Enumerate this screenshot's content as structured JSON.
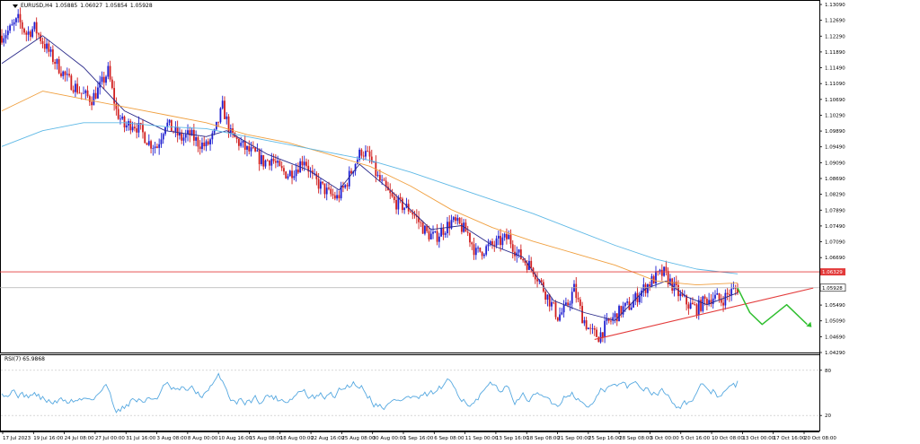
{
  "header": {
    "symbol": "EURUSD,H4",
    "open": "1.05885",
    "high": "1.06027",
    "low": "1.05854",
    "close": "1.05928"
  },
  "rsi_panel": {
    "label": "RSI(7) 65.9868"
  },
  "colors": {
    "bull_candle": "#1f1fd1",
    "bear_candle": "#d11f1f",
    "ma_fast": "#2a2a8a",
    "ma_mid": "#f0a040",
    "ma_slow": "#5fb9e6",
    "rsi_line": "#55a8e0",
    "resistance": "#e33b3b",
    "trendline": "#e33b3b",
    "projection": "#2fbf2f",
    "price_tag_bg": "#ffffff"
  },
  "chart_data": [
    {
      "type": "line",
      "name": "EURUSD H4 candlesticks",
      "ylim": [
        1.0429,
        1.1309
      ],
      "y_ticks": [
        "1.13090",
        "1.12690",
        "1.12290",
        "1.11890",
        "1.11490",
        "1.11090",
        "1.10690",
        "1.10290",
        "1.09890",
        "1.09490",
        "1.09090",
        "1.08690",
        "1.08290",
        "1.07890",
        "1.07490",
        "1.07090",
        "1.06690",
        "1.06329",
        "1.05928",
        "1.05490",
        "1.05090",
        "1.04690",
        "1.04290"
      ],
      "x_tick_labels": [
        "17 Jul 2023",
        "19 Jul 16:00",
        "24 Jul 08:00",
        "27 Jul 00:00",
        "31 Jul 16:00",
        "3 Aug 08:00",
        "8 Aug 00:00",
        "10 Aug 16:00",
        "15 Aug 08:00",
        "18 Aug 00:00",
        "22 Aug 16:00",
        "25 Aug 08:00",
        "30 Aug 00:00",
        "1 Sep 16:00",
        "6 Sep 08:00",
        "11 Sep 00:00",
        "13 Sep 16:00",
        "18 Sep 08:00",
        "21 Sep 00:00",
        "25 Sep 16:00",
        "28 Sep 08:00",
        "3 Oct 00:00",
        "5 Oct 16:00",
        "10 Oct 08:00",
        "13 Oct 00:00",
        "17 Oct 16:00",
        "20 Oct 08:00"
      ],
      "close_path": [
        [
          0,
          1.123
        ],
        [
          4,
          1.1245
        ],
        [
          8,
          1.127
        ],
        [
          12,
          1.1235
        ],
        [
          16,
          1.125
        ],
        [
          20,
          1.1215
        ],
        [
          24,
          1.118
        ],
        [
          28,
          1.115
        ],
        [
          32,
          1.112
        ],
        [
          36,
          1.11
        ],
        [
          40,
          1.108
        ],
        [
          44,
          1.107
        ],
        [
          48,
          1.11
        ],
        [
          52,
          1.114
        ],
        [
          56,
          1.104
        ],
        [
          60,
          1.1
        ],
        [
          64,
          1.101
        ],
        [
          68,
          1.099
        ],
        [
          72,
          1.096
        ],
        [
          76,
          1.095
        ],
        [
          80,
          1.101
        ],
        [
          84,
          1.099
        ],
        [
          88,
          1.097
        ],
        [
          92,
          1.098
        ],
        [
          96,
          1.096
        ],
        [
          100,
          1.095
        ],
        [
          104,
          1.098
        ],
        [
          108,
          1.105
        ],
        [
          112,
          1.098
        ],
        [
          116,
          1.096
        ],
        [
          120,
          1.094
        ],
        [
          124,
          1.093
        ],
        [
          128,
          1.091
        ],
        [
          132,
          1.092
        ],
        [
          136,
          1.089
        ],
        [
          140,
          1.088
        ],
        [
          144,
          1.0895
        ],
        [
          148,
          1.092
        ],
        [
          152,
          1.087
        ],
        [
          156,
          1.085
        ],
        [
          160,
          1.083
        ],
        [
          164,
          1.082
        ],
        [
          168,
          1.085
        ],
        [
          172,
          1.09
        ],
        [
          176,
          1.094
        ],
        [
          180,
          1.092
        ],
        [
          184,
          1.087
        ],
        [
          188,
          1.084
        ],
        [
          192,
          1.081
        ],
        [
          196,
          1.08
        ],
        [
          200,
          1.079
        ],
        [
          204,
          1.076
        ],
        [
          208,
          1.073
        ],
        [
          212,
          1.072
        ],
        [
          216,
          1.074
        ],
        [
          220,
          1.076
        ],
        [
          224,
          1.075
        ],
        [
          228,
          1.073
        ],
        [
          232,
          1.068
        ],
        [
          236,
          1.069
        ],
        [
          240,
          1.07
        ],
        [
          244,
          1.071
        ],
        [
          248,
          1.072
        ],
        [
          252,
          1.068
        ],
        [
          256,
          1.066
        ],
        [
          260,
          1.064
        ],
        [
          264,
          1.06
        ],
        [
          268,
          1.056
        ],
        [
          272,
          1.052
        ],
        [
          276,
          1.054
        ],
        [
          280,
          1.059
        ],
        [
          284,
          1.052
        ],
        [
          288,
          1.048
        ],
        [
          292,
          1.047
        ],
        [
          296,
          1.05
        ],
        [
          300,
          1.052
        ],
        [
          304,
          1.054
        ],
        [
          308,
          1.055
        ],
        [
          312,
          1.058
        ],
        [
          316,
          1.06
        ],
        [
          320,
          1.062
        ],
        [
          324,
          1.063
        ],
        [
          328,
          1.06
        ],
        [
          332,
          1.057
        ],
        [
          336,
          1.055
        ],
        [
          340,
          1.054
        ],
        [
          344,
          1.056
        ],
        [
          348,
          1.057
        ],
        [
          352,
          1.056
        ],
        [
          356,
          1.058
        ],
        [
          360,
          1.0592
        ]
      ],
      "series": [
        {
          "name": "MA fast",
          "values": [
            [
              0,
              1.116
            ],
            [
              20,
              1.123
            ],
            [
              40,
              1.115
            ],
            [
              60,
              1.104
            ],
            [
              80,
              1.099
            ],
            [
              100,
              1.0975
            ],
            [
              110,
              1.099
            ],
            [
              130,
              1.093
            ],
            [
              150,
              1.089
            ],
            [
              165,
              1.084
            ],
            [
              175,
              1.0905
            ],
            [
              190,
              1.084
            ],
            [
              210,
              1.074
            ],
            [
              225,
              1.075
            ],
            [
              240,
              1.07
            ],
            [
              255,
              1.067
            ],
            [
              270,
              1.056
            ],
            [
              285,
              1.053
            ],
            [
              300,
              1.051
            ],
            [
              315,
              1.059
            ],
            [
              325,
              1.061
            ],
            [
              335,
              1.057
            ],
            [
              345,
              1.055
            ],
            [
              360,
              1.058
            ]
          ]
        },
        {
          "name": "MA mid",
          "values": [
            [
              0,
              1.104
            ],
            [
              20,
              1.109
            ],
            [
              40,
              1.107
            ],
            [
              60,
              1.105
            ],
            [
              80,
              1.103
            ],
            [
              100,
              1.101
            ],
            [
              120,
              1.098
            ],
            [
              140,
              1.096
            ],
            [
              160,
              1.093
            ],
            [
              180,
              1.09
            ],
            [
              200,
              1.085
            ],
            [
              220,
              1.079
            ],
            [
              240,
              1.0745
            ],
            [
              260,
              1.071
            ],
            [
              280,
              1.068
            ],
            [
              300,
              1.065
            ],
            [
              320,
              1.061
            ],
            [
              340,
              1.06
            ],
            [
              360,
              1.0605
            ]
          ]
        },
        {
          "name": "MA slow",
          "values": [
            [
              0,
              1.095
            ],
            [
              20,
              1.099
            ],
            [
              40,
              1.101
            ],
            [
              60,
              1.101
            ],
            [
              80,
              1.1
            ],
            [
              100,
              1.0995
            ],
            [
              120,
              1.0975
            ],
            [
              140,
              1.0955
            ],
            [
              160,
              1.0935
            ],
            [
              180,
              1.0915
            ],
            [
              200,
              1.0885
            ],
            [
              220,
              1.085
            ],
            [
              240,
              1.0815
            ],
            [
              260,
              1.078
            ],
            [
              280,
              1.074
            ],
            [
              300,
              1.07
            ],
            [
              320,
              1.0665
            ],
            [
              340,
              1.064
            ],
            [
              360,
              1.0628
            ]
          ]
        }
      ],
      "annotations": {
        "resistance_level": 1.06329,
        "current_price": 1.05928,
        "trendline": [
          [
            290,
            1.0462
          ],
          [
            397,
            1.0592
          ]
        ],
        "projection": [
          [
            360,
            1.0592
          ],
          [
            366,
            1.053
          ],
          [
            372,
            1.05
          ],
          [
            384,
            1.055
          ],
          [
            394,
            1.05
          ],
          [
            392,
            1.05
          ]
        ]
      },
      "grid": false,
      "legend": "none"
    },
    {
      "type": "line",
      "name": "RSI(7)",
      "ylim": [
        0,
        100
      ],
      "y_ticks": [
        "80",
        "20"
      ],
      "levels": [
        80,
        20
      ],
      "last_value": 65.9868
    }
  ]
}
